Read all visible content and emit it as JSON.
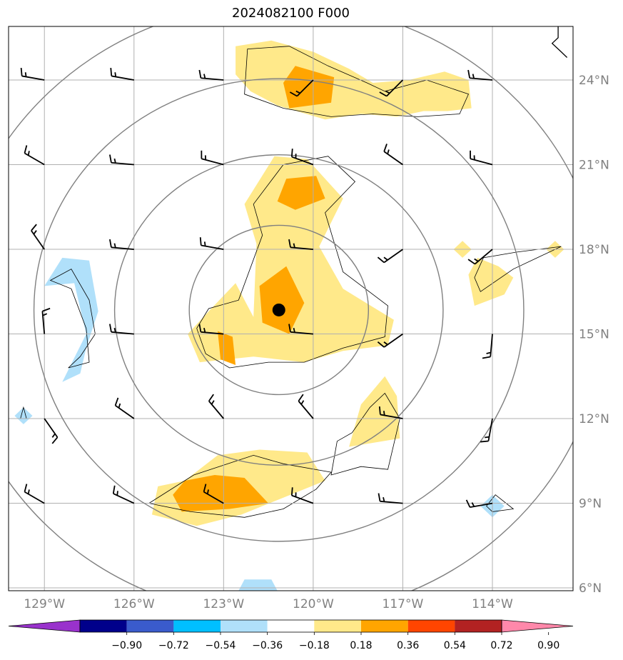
{
  "title": "2024082100 F000",
  "map": {
    "lon_range": [
      -130.2,
      -111.3
    ],
    "lat_range": [
      5.9,
      25.9
    ],
    "lat_ticks": [
      {
        "value": 6,
        "label": "6°N"
      },
      {
        "value": 9,
        "label": "9°N"
      },
      {
        "value": 12,
        "label": "12°N"
      },
      {
        "value": 15,
        "label": "15°N"
      },
      {
        "value": 18,
        "label": "18°N"
      },
      {
        "value": 21,
        "label": "21°N"
      },
      {
        "value": 24,
        "label": "24°N"
      }
    ],
    "lon_ticks": [
      {
        "value": -129,
        "label": "129°W"
      },
      {
        "value": -126,
        "label": "126°W"
      },
      {
        "value": -123,
        "label": "123°W"
      },
      {
        "value": -120,
        "label": "120°W"
      },
      {
        "value": -117,
        "label": "117°W"
      },
      {
        "value": -114,
        "label": "114°W"
      }
    ],
    "storm_center": {
      "lon": -121.15,
      "lat": 15.85
    },
    "range_rings_deg": [
      3,
      5.5,
      8.2,
      10.9
    ],
    "colors": {
      "pos_018_036": "#ffe98a",
      "pos_036_054": "#ffa500",
      "neg_018_036": "#b0e0fa",
      "grid": "#b0b0b0",
      "ring": "#808080"
    },
    "fields": {
      "yellow": [
        [
          [
            -122.6,
            24.2
          ],
          [
            -122.6,
            25.2
          ],
          [
            -121.4,
            25.4
          ],
          [
            -120,
            25
          ],
          [
            -118.8,
            24.4
          ],
          [
            -118.0,
            23.9
          ],
          [
            -116.8,
            24
          ],
          [
            -115.6,
            24.3
          ],
          [
            -114.8,
            24
          ],
          [
            -114.7,
            23.0
          ],
          [
            -115.5,
            22.9
          ],
          [
            -116.3,
            22.9
          ],
          [
            -117.2,
            22.7
          ],
          [
            -118.4,
            22.8
          ],
          [
            -119.6,
            22.6
          ],
          [
            -121.2,
            23.1
          ],
          [
            -122.1,
            23.6
          ]
        ],
        [
          [
            -122.0,
            15.6
          ],
          [
            -121.9,
            18.2
          ],
          [
            -122.3,
            19.6
          ],
          [
            -121.3,
            21.3
          ],
          [
            -120.2,
            21.2
          ],
          [
            -119.0,
            19.8
          ],
          [
            -119.8,
            18.1
          ],
          [
            -119.0,
            16.6
          ],
          [
            -117.3,
            15.5
          ],
          [
            -117.5,
            14.6
          ],
          [
            -119.0,
            14.4
          ],
          [
            -120.3,
            14.0
          ],
          [
            -122.0,
            14.2
          ],
          [
            -123.8,
            14.0
          ],
          [
            -124.2,
            15.0
          ],
          [
            -123.5,
            15.8
          ],
          [
            -122.6,
            16.8
          ]
        ],
        [
          [
            -118.8,
            11.0
          ],
          [
            -118.4,
            12.5
          ],
          [
            -117.6,
            13.5
          ],
          [
            -117.2,
            12.8
          ],
          [
            -117.1,
            11.3
          ]
        ],
        [
          [
            -124.3,
            9.8
          ],
          [
            -123.2,
            10.7
          ],
          [
            -121.8,
            10.9
          ],
          [
            -120.2,
            10.8
          ],
          [
            -119.6,
            9.8
          ],
          [
            -121.0,
            9.2
          ],
          [
            -122.4,
            8.6
          ],
          [
            -123.9,
            8.2
          ],
          [
            -125.4,
            8.6
          ],
          [
            -125.2,
            9.6
          ]
        ],
        [
          [
            -114.6,
            16.0
          ],
          [
            -113.6,
            16.4
          ],
          [
            -113.3,
            17.0
          ],
          [
            -113.8,
            17.4
          ],
          [
            -114.5,
            17.7
          ],
          [
            -114.8,
            17.1
          ]
        ],
        [
          [
            -115.3,
            18.0
          ],
          [
            -115.0,
            18.3
          ],
          [
            -114.7,
            18.0
          ],
          [
            -115.0,
            17.7
          ]
        ],
        [
          [
            -112.2,
            18.0
          ],
          [
            -111.9,
            18.3
          ],
          [
            -111.6,
            18.0
          ],
          [
            -111.9,
            17.7
          ]
        ]
      ],
      "orange": [
        [
          [
            -120.8,
            23.0
          ],
          [
            -119.4,
            23.2
          ],
          [
            -119.3,
            24.1
          ],
          [
            -120.6,
            24.5
          ],
          [
            -121.0,
            23.9
          ]
        ],
        [
          [
            -120.9,
            20.5
          ],
          [
            -119.9,
            20.6
          ],
          [
            -119.6,
            19.8
          ],
          [
            -120.6,
            19.4
          ],
          [
            -121.2,
            19.7
          ]
        ],
        [
          [
            -121.8,
            16.7
          ],
          [
            -120.9,
            17.4
          ],
          [
            -120.3,
            16.1
          ],
          [
            -120.8,
            15.0
          ],
          [
            -121.7,
            15.4
          ]
        ],
        [
          [
            -123.2,
            15.1
          ],
          [
            -122.7,
            14.9
          ],
          [
            -122.6,
            13.9
          ],
          [
            -123.1,
            14.1
          ]
        ],
        [
          [
            -124.3,
            9.8
          ],
          [
            -123.3,
            10.0
          ],
          [
            -122.3,
            9.9
          ],
          [
            -121.5,
            9.0
          ],
          [
            -122.8,
            8.8
          ],
          [
            -124.4,
            8.7
          ],
          [
            -124.7,
            9.3
          ]
        ]
      ],
      "blue": [
        [
          [
            -129.0,
            16.7
          ],
          [
            -128.4,
            17.7
          ],
          [
            -127.5,
            17.6
          ],
          [
            -127.2,
            15.8
          ],
          [
            -127.6,
            14.5
          ],
          [
            -127.8,
            13.6
          ],
          [
            -128.4,
            13.3
          ],
          [
            -127.6,
            15.0
          ],
          [
            -128.0,
            16.8
          ]
        ],
        [
          [
            -130.0,
            12.1
          ],
          [
            -129.7,
            12.4
          ],
          [
            -129.4,
            12.1
          ],
          [
            -129.7,
            11.8
          ]
        ],
        [
          [
            -114.4,
            8.9
          ],
          [
            -114.0,
            9.3
          ],
          [
            -113.6,
            8.9
          ],
          [
            -114.0,
            8.5
          ]
        ],
        [
          [
            -122.5,
            5.9
          ],
          [
            -122.3,
            6.3
          ],
          [
            -121.4,
            6.3
          ],
          [
            -121.2,
            5.9
          ]
        ]
      ],
      "contours": [
        [
          [
            -122.3,
            23.5
          ],
          [
            -122.2,
            25.1
          ],
          [
            -120.8,
            25.2
          ],
          [
            -119.5,
            24.5
          ],
          [
            -118.2,
            23.9
          ],
          [
            -117.6,
            23.6
          ],
          [
            -116.2,
            24.0
          ],
          [
            -114.8,
            23.5
          ],
          [
            -115.1,
            22.8
          ],
          [
            -116.5,
            22.7
          ],
          [
            -118.0,
            22.8
          ],
          [
            -119.4,
            22.7
          ],
          [
            -121.0,
            23.0
          ]
        ],
        [
          [
            -121.0,
            21.0
          ],
          [
            -119.5,
            21.3
          ],
          [
            -118.6,
            20.4
          ],
          [
            -119.6,
            19.3
          ],
          [
            -119.0,
            17.2
          ],
          [
            -117.5,
            16.0
          ],
          [
            -117.6,
            14.9
          ],
          [
            -119.0,
            14.5
          ],
          [
            -120.3,
            14.0
          ],
          [
            -121.5,
            14.0
          ],
          [
            -122.8,
            13.8
          ],
          [
            -123.6,
            14.3
          ],
          [
            -123.9,
            15.2
          ],
          [
            -123.5,
            15.9
          ],
          [
            -122.5,
            16.2
          ],
          [
            -121.7,
            18.5
          ],
          [
            -122.0,
            19.6
          ]
        ],
        [
          [
            -118.1,
            12.4
          ],
          [
            -117.6,
            12.9
          ],
          [
            -117.1,
            12.0
          ],
          [
            -117.5,
            10.2
          ],
          [
            -118.4,
            10.3
          ],
          [
            -119.4,
            10.0
          ],
          [
            -119.2,
            11.2
          ],
          [
            -118.7,
            11.5
          ]
        ],
        [
          [
            -125.5,
            9.0
          ],
          [
            -124.0,
            10.0
          ],
          [
            -122.0,
            10.7
          ],
          [
            -121.0,
            10.4
          ],
          [
            -119.4,
            10.1
          ],
          [
            -119.9,
            9.5
          ],
          [
            -121.0,
            8.8
          ],
          [
            -122.3,
            8.5
          ],
          [
            -124.1,
            8.7
          ]
        ],
        [
          [
            -128.8,
            16.9
          ],
          [
            -128.1,
            17.3
          ],
          [
            -127.5,
            16.2
          ],
          [
            -127.3,
            15.0
          ],
          [
            -127.8,
            14.2
          ],
          [
            -128.2,
            13.8
          ],
          [
            -127.5,
            14.0
          ],
          [
            -127.6,
            15.2
          ],
          [
            -128.1,
            16.6
          ]
        ],
        [
          [
            -114.4,
            16.5
          ],
          [
            -113.3,
            17.3
          ],
          [
            -112.5,
            17.7
          ],
          [
            -111.7,
            18.1
          ],
          [
            -113.2,
            17.9
          ],
          [
            -114.3,
            17.7
          ],
          [
            -114.6,
            17.0
          ]
        ],
        [
          [
            -129.8,
            12.0
          ],
          [
            -129.7,
            12.4
          ],
          [
            -129.6,
            12.0
          ]
        ],
        [
          [
            -114.2,
            8.9
          ],
          [
            -113.9,
            9.3
          ],
          [
            -113.3,
            8.8
          ],
          [
            -114.0,
            8.7
          ]
        ]
      ]
    },
    "wind_barbs": {
      "lons": [
        -129,
        -126,
        -123,
        -120,
        -117,
        -114
      ],
      "lats": [
        24,
        21,
        18,
        15,
        12,
        9
      ],
      "barbs": [
        [
          280,
          280,
          275,
          225,
          225,
          275
        ],
        [
          300,
          275,
          285,
          290,
          305,
          285
        ],
        [
          325,
          275,
          280,
          275,
          235,
          230
        ],
        [
          355,
          275,
          275,
          275,
          235,
          185
        ],
        [
          145,
          305,
          320,
          320,
          280,
          190
        ],
        [
          300,
          295,
          300,
          290,
          275,
          260
        ]
      ]
    },
    "coastline": [
      [
        -111.8,
        25.9
      ],
      [
        -111.8,
        25.5
      ],
      [
        -112.0,
        25.3
      ],
      [
        -111.7,
        25.0
      ],
      [
        -111.5,
        24.8
      ]
    ]
  },
  "colorbar": {
    "colors": [
      "#9932cc",
      "#00008b",
      "#3a5bcc",
      "#00bfff",
      "#b0e0fa",
      "#ffffff",
      "#ffe98a",
      "#ffa500",
      "#ff4500",
      "#b22222",
      "#ff88aa"
    ],
    "labels": [
      "−0.90",
      "−0.72",
      "−0.54",
      "−0.36",
      "−0.18",
      "0.18",
      "0.36",
      "0.54",
      "0.72",
      "0.90"
    ]
  }
}
